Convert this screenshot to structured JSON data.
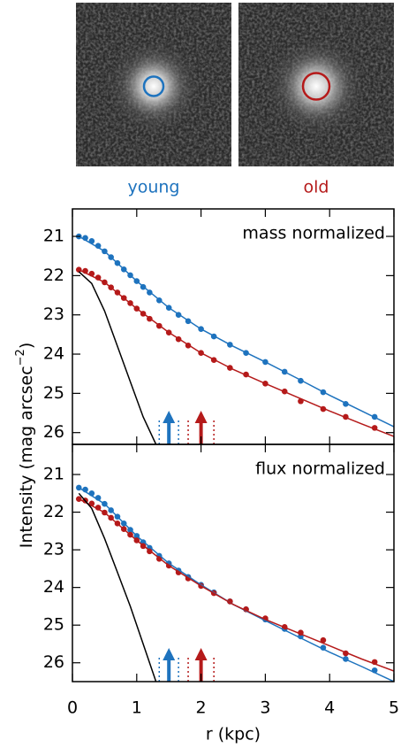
{
  "images": [
    {
      "label": "young",
      "color": "#1e73be"
    },
    {
      "label": "old",
      "color": "#b51a1a"
    }
  ],
  "y_label": {
    "text": "Intensity (mag arcsec",
    "sup": "−2",
    "end": ")"
  },
  "chart_data": [
    {
      "type": "profile",
      "title": "mass normalized",
      "xlim": [
        0,
        5
      ],
      "xticks": [
        0,
        1,
        2,
        3,
        4,
        5
      ],
      "ylim": [
        26.3,
        20.3
      ],
      "yticks": [
        21,
        22,
        23,
        24,
        25,
        26
      ],
      "series": [
        {
          "style": "points",
          "color": "#1e73be",
          "x": [
            0.1,
            0.2,
            0.3,
            0.4,
            0.5,
            0.6,
            0.7,
            0.8,
            0.9,
            1.0,
            1.1,
            1.2,
            1.35,
            1.5,
            1.65,
            1.8,
            2.0,
            2.2,
            2.45,
            2.7,
            3.0,
            3.3,
            3.55,
            3.9,
            4.25,
            4.7
          ],
          "values": [
            21.0,
            21.04,
            21.12,
            21.24,
            21.38,
            21.53,
            21.68,
            21.84,
            21.99,
            22.14,
            22.29,
            22.43,
            22.63,
            22.82,
            23.0,
            23.16,
            23.36,
            23.55,
            23.76,
            23.97,
            24.2,
            24.45,
            24.68,
            24.97,
            25.27,
            25.6
          ]
        },
        {
          "style": "points",
          "color": "#b51a1a",
          "x": [
            0.1,
            0.2,
            0.3,
            0.4,
            0.5,
            0.6,
            0.7,
            0.8,
            0.9,
            1.0,
            1.1,
            1.2,
            1.35,
            1.5,
            1.65,
            1.8,
            2.0,
            2.2,
            2.45,
            2.7,
            3.0,
            3.3,
            3.55,
            3.9,
            4.25,
            4.7
          ],
          "values": [
            21.85,
            21.88,
            21.95,
            22.05,
            22.17,
            22.3,
            22.43,
            22.57,
            22.7,
            22.84,
            22.97,
            23.1,
            23.28,
            23.45,
            23.62,
            23.78,
            23.97,
            24.15,
            24.35,
            24.52,
            24.75,
            24.95,
            25.2,
            25.4,
            25.6,
            25.88
          ]
        },
        {
          "style": "line",
          "color": "#1e73be",
          "x": [
            0.1,
            0.5,
            1,
            1.5,
            2,
            2.5,
            3,
            3.5,
            4,
            4.5,
            5
          ],
          "values": [
            21.0,
            21.38,
            22.14,
            22.82,
            23.36,
            23.8,
            24.2,
            24.62,
            25.05,
            25.45,
            25.85
          ]
        },
        {
          "style": "line",
          "color": "#b51a1a",
          "x": [
            0.1,
            0.5,
            1,
            1.5,
            2,
            2.5,
            3,
            3.5,
            4,
            4.5,
            5
          ],
          "values": [
            21.85,
            22.17,
            22.84,
            23.45,
            23.97,
            24.39,
            24.75,
            25.1,
            25.45,
            25.78,
            26.1
          ]
        },
        {
          "style": "line",
          "color": "#000000",
          "x": [
            0.1,
            0.3,
            0.5,
            0.7,
            0.9,
            1.1,
            1.3
          ],
          "values": [
            21.9,
            22.2,
            22.9,
            23.8,
            24.7,
            25.6,
            26.3
          ]
        }
      ],
      "markers": [
        {
          "color": "#1e73be",
          "x": 1.5,
          "err": 0.15
        },
        {
          "color": "#b51a1a",
          "x": 2.0,
          "err": 0.2
        }
      ]
    },
    {
      "type": "profile",
      "title": "flux normalized",
      "x_label": "r (kpc)",
      "xlim": [
        0,
        5
      ],
      "xticks": [
        0,
        1,
        2,
        3,
        4,
        5
      ],
      "ylim": [
        26.5,
        20.2
      ],
      "yticks": [
        21,
        22,
        23,
        24,
        25,
        26
      ],
      "series": [
        {
          "style": "points",
          "color": "#1e73be",
          "x": [
            0.1,
            0.2,
            0.3,
            0.4,
            0.5,
            0.6,
            0.7,
            0.8,
            0.9,
            1.0,
            1.1,
            1.2,
            1.35,
            1.5,
            1.65,
            1.8,
            2.0,
            2.2,
            2.45,
            2.7,
            3.0,
            3.3,
            3.55,
            3.9,
            4.25,
            4.7
          ],
          "values": [
            21.35,
            21.4,
            21.5,
            21.62,
            21.78,
            21.95,
            22.12,
            22.3,
            22.47,
            22.63,
            22.8,
            22.95,
            23.16,
            23.36,
            23.55,
            23.72,
            23.93,
            24.13,
            24.37,
            24.58,
            24.85,
            25.1,
            25.3,
            25.6,
            25.9,
            26.2
          ]
        },
        {
          "style": "points",
          "color": "#b51a1a",
          "x": [
            0.1,
            0.2,
            0.3,
            0.4,
            0.5,
            0.6,
            0.7,
            0.8,
            0.9,
            1.0,
            1.1,
            1.2,
            1.35,
            1.5,
            1.65,
            1.8,
            2.0,
            2.2,
            2.45,
            2.7,
            3.0,
            3.3,
            3.55,
            3.9,
            4.25,
            4.7
          ],
          "values": [
            21.65,
            21.69,
            21.77,
            21.88,
            22.01,
            22.15,
            22.3,
            22.45,
            22.6,
            22.75,
            22.9,
            23.04,
            23.24,
            23.42,
            23.6,
            23.76,
            23.96,
            24.15,
            24.37,
            24.58,
            24.82,
            25.05,
            25.2,
            25.4,
            25.75,
            25.98
          ]
        },
        {
          "style": "line",
          "color": "#1e73be",
          "x": [
            0.1,
            0.5,
            1,
            1.5,
            2,
            2.5,
            3,
            3.5,
            4,
            4.5,
            5
          ],
          "values": [
            21.35,
            21.78,
            22.63,
            23.36,
            23.93,
            24.45,
            24.88,
            25.3,
            25.72,
            26.1,
            26.5
          ]
        },
        {
          "style": "line",
          "color": "#b51a1a",
          "x": [
            0.1,
            0.5,
            1,
            1.5,
            2,
            2.5,
            3,
            3.5,
            4,
            4.5,
            5
          ],
          "values": [
            21.65,
            22.01,
            22.75,
            23.42,
            23.96,
            24.45,
            24.85,
            25.2,
            25.55,
            25.9,
            26.22
          ]
        },
        {
          "style": "line",
          "color": "#000000",
          "x": [
            0.1,
            0.3,
            0.5,
            0.7,
            0.9,
            1.1,
            1.3
          ],
          "values": [
            21.5,
            21.9,
            22.7,
            23.6,
            24.5,
            25.5,
            26.5
          ]
        }
      ],
      "markers": [
        {
          "color": "#1e73be",
          "x": 1.5,
          "err": 0.15
        },
        {
          "color": "#b51a1a",
          "x": 2.0,
          "err": 0.2
        }
      ]
    }
  ]
}
